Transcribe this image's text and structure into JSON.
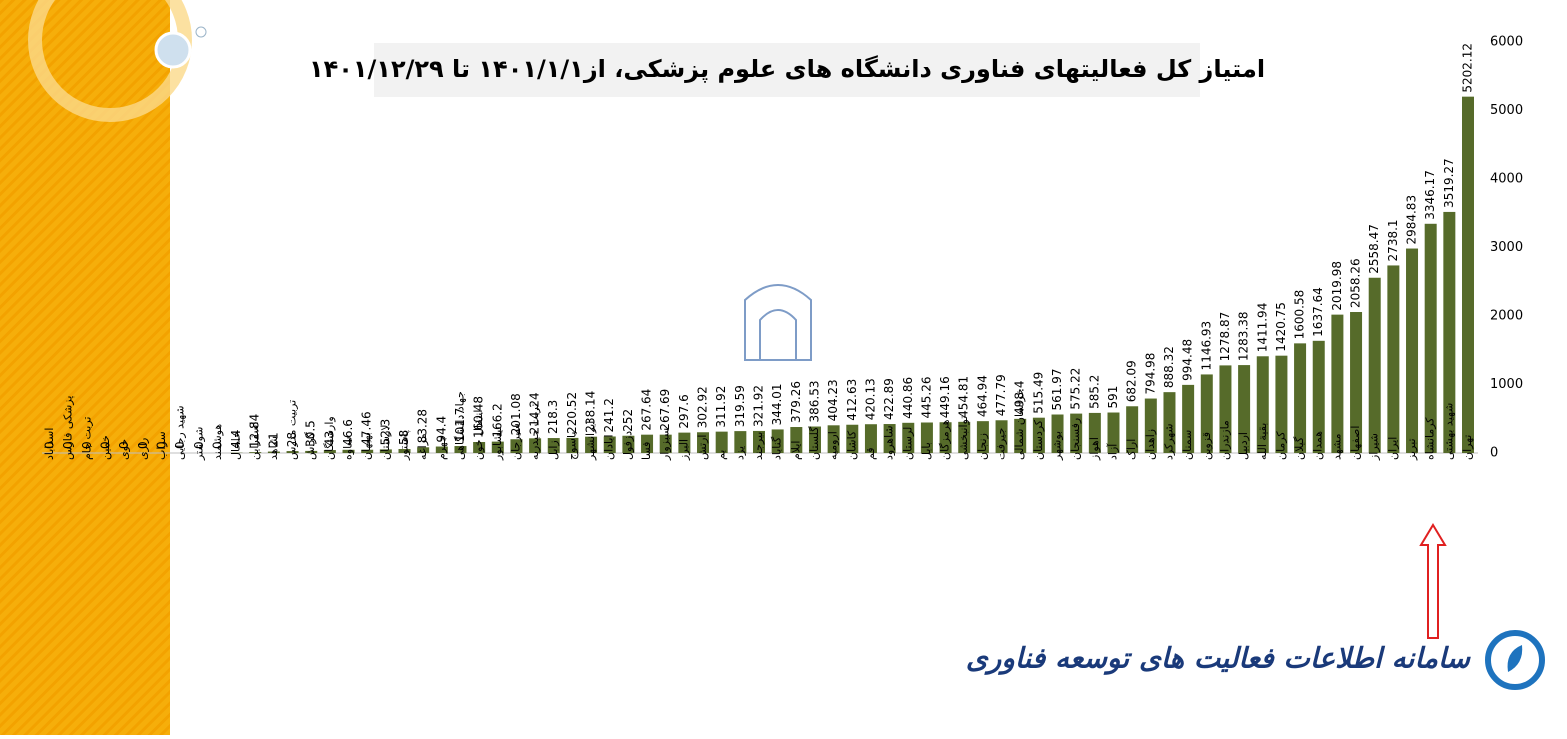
{
  "chart_data": {
    "type": "bar",
    "title": "امتیاز کل فعالیتهای فناوری دانشگاه های علوم پزشکی، از۱۴۰۱/۱/۱ تا ۱۴۰۱/۱۲/۲۹",
    "categories": [
      "اسداباد",
      "پزشکی فارس",
      "تربت جام",
      "خمین",
      "خوی",
      "رازی",
      "سراب",
      "شهید رجایی",
      "شوشتر",
      "هوشمند",
      "خلخال",
      "اسفراین",
      "شاهد",
      "تربیت مدرس",
      "گراش",
      "وارستگان",
      "ساوه",
      "بهبهان",
      "لارستان",
      "پاستور",
      "مراغه",
      "جهرم",
      "جهاد دانشگاهی",
      "انتقال خون",
      "نیشابور",
      "سیرجان",
      "تربت حیدریه",
      "زابل",
      "یاسوج",
      "ایرانشهر",
      "ابادان",
      "دزفول",
      "فسا",
      "سبزوار",
      "البرز",
      "ارتش",
      "بم",
      "یزد",
      "بیرجند",
      "گناباد",
      "ایلام",
      "گلستان",
      "ارومیه",
      "کاشان",
      "قم",
      "شاهرود",
      "لرستان",
      "بابل",
      "هرمزگان",
      "توانبخشی",
      "زنجان",
      "جیرفت",
      "خراسان شمالی",
      "کردستان",
      "بوشهر",
      "رفسنجان",
      "اهواز",
      "آزاد",
      "اراک",
      "زاهدان",
      "شهرکرد",
      "سمنان",
      "قزوین",
      "مازندران",
      "اردبیل",
      "بقیة الله",
      "کرمان",
      "گیلان",
      "همدان",
      "مشهد",
      "اصفهان",
      "شیراز",
      "ایران",
      "تبریز",
      "کرمانشاه",
      "شهید بهشتی",
      "تهران"
    ],
    "values": [
      0,
      0,
      0,
      0,
      0,
      0,
      0,
      0,
      0,
      0,
      4.4,
      12.84,
      21,
      28,
      30.5,
      43,
      46.6,
      47.46,
      52.3,
      58,
      83.28,
      94.4,
      101.7,
      160.48,
      166.2,
      201.08,
      214.24,
      218.3,
      220.52,
      238.14,
      241.2,
      252,
      267.64,
      267.69,
      297.6,
      302.92,
      311.92,
      319.59,
      321.92,
      344.01,
      379.26,
      386.53,
      404.23,
      412.63,
      420.13,
      422.89,
      440.86,
      445.26,
      449.16,
      454.81,
      464.94,
      477.79,
      498.4,
      515.49,
      561.97,
      575.22,
      585.2,
      591,
      682.09,
      794.98,
      888.32,
      994.48,
      1146.93,
      1278.87,
      1283.38,
      1411.94,
      1420.75,
      1600.58,
      1637.64,
      2019.98,
      2058.26,
      2558.47,
      2738.1,
      2984.83,
      3346.17,
      3519.27,
      5202.12
    ],
    "color": "#566b2a",
    "ylim": [
      0,
      6000
    ],
    "yticks": [
      0,
      1000,
      2000,
      3000,
      4000,
      5000,
      6000
    ]
  },
  "footer": {
    "logo_text": "سامانه اطلاعات فعالیت های توسعه فناوری"
  }
}
